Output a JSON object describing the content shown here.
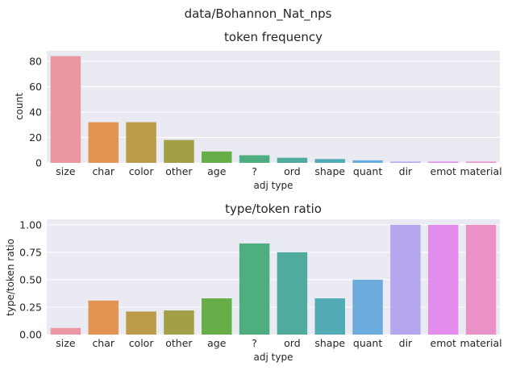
{
  "suptitle": "data/Bohannon_Nat_nps",
  "chart_data": [
    {
      "type": "bar",
      "title": "token frequency",
      "xlabel": "adj type",
      "ylabel": "count",
      "categories": [
        "size",
        "char",
        "color",
        "other",
        "age",
        "?",
        "ord",
        "shape",
        "quant",
        "dir",
        "emot",
        "material"
      ],
      "values": [
        84,
        32,
        32,
        18,
        9,
        6,
        4,
        3,
        2,
        1,
        1,
        1
      ],
      "ylim": [
        0,
        88.2
      ],
      "yticks": [
        0,
        20,
        40,
        60,
        80
      ],
      "ytick_labels": [
        "0",
        "20",
        "40",
        "60",
        "80"
      ],
      "grid": true
    },
    {
      "type": "bar",
      "title": "type/token ratio",
      "xlabel": "adj type",
      "ylabel": "type/token ratio",
      "categories": [
        "size",
        "char",
        "color",
        "other",
        "age",
        "?",
        "ord",
        "shape",
        "quant",
        "dir",
        "emot",
        "material"
      ],
      "values": [
        0.06,
        0.31,
        0.21,
        0.22,
        0.33,
        0.83,
        0.75,
        0.33,
        0.5,
        1.0,
        1.0,
        1.0
      ],
      "ylim": [
        0,
        1.05
      ],
      "yticks": [
        0,
        0.25,
        0.5,
        0.75,
        1.0
      ],
      "ytick_labels": [
        "0.00",
        "0.25",
        "0.50",
        "0.75",
        "1.00"
      ],
      "grid": true
    }
  ],
  "colors": {
    "background": "#eaeaf2",
    "grid": "#ffffff",
    "palette": [
      "#ea96a3",
      "#e49450",
      "#bb9b47",
      "#a29f46",
      "#67ae48",
      "#4eae80",
      "#50aa9d",
      "#53abb5",
      "#6bacdc",
      "#b6a6ed",
      "#e28ced",
      "#ea91c7"
    ]
  }
}
